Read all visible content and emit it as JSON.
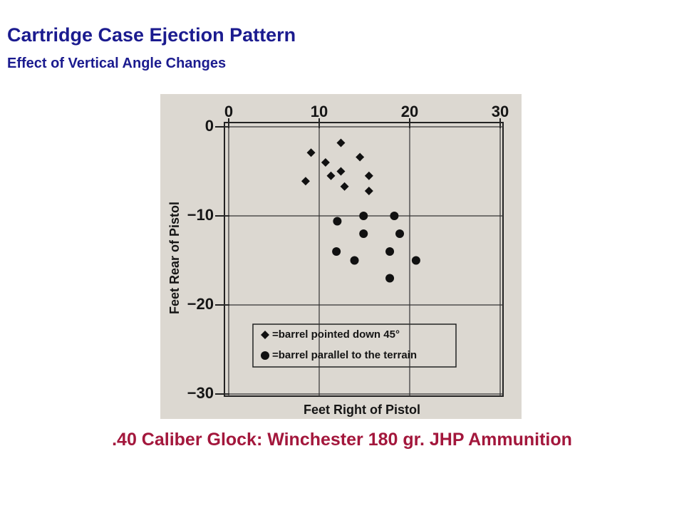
{
  "slide": {
    "title": "Cartridge Case Ejection Pattern",
    "subtitle": "Effect of Vertical Angle Changes",
    "caption": ".40 Caliber Glock:  Winchester 180 gr. JHP Ammunition"
  },
  "chart_data": {
    "type": "scatter",
    "x_label": "Feet Right of Pistol",
    "y_label": "Feet Rear of Pistol",
    "xlim": [
      0,
      30
    ],
    "ylim": [
      -30,
      0
    ],
    "xticks": [
      0,
      10,
      20,
      30
    ],
    "yticks": [
      0,
      {
        "value": -10,
        "label": "−10"
      },
      {
        "value": -20,
        "label": "−20"
      },
      {
        "value": -30,
        "label": "−30"
      }
    ],
    "grid": true,
    "series": [
      {
        "name": "=barrel pointed down 45°",
        "marker": "diamond",
        "color": "#111111",
        "x": [
          9.1,
          12.4,
          10.7,
          14.5,
          12.4,
          11.3,
          15.5,
          8.5,
          12.8,
          15.5
        ],
        "values": [
          -2.9,
          -1.8,
          -4,
          -3.4,
          -5,
          -5.5,
          -5.5,
          -6.1,
          -6.7,
          -7.2
        ]
      },
      {
        "name": "=barrel parallel to the terrain",
        "marker": "circle",
        "color": "#111111",
        "x": [
          12,
          14.9,
          18.3,
          14.9,
          18.9,
          11.9,
          17.8,
          13.9,
          20.7,
          17.8
        ],
        "values": [
          -10.6,
          -10,
          -10,
          -12,
          -12,
          -14,
          -14,
          -15,
          -15,
          -17
        ]
      }
    ]
  }
}
